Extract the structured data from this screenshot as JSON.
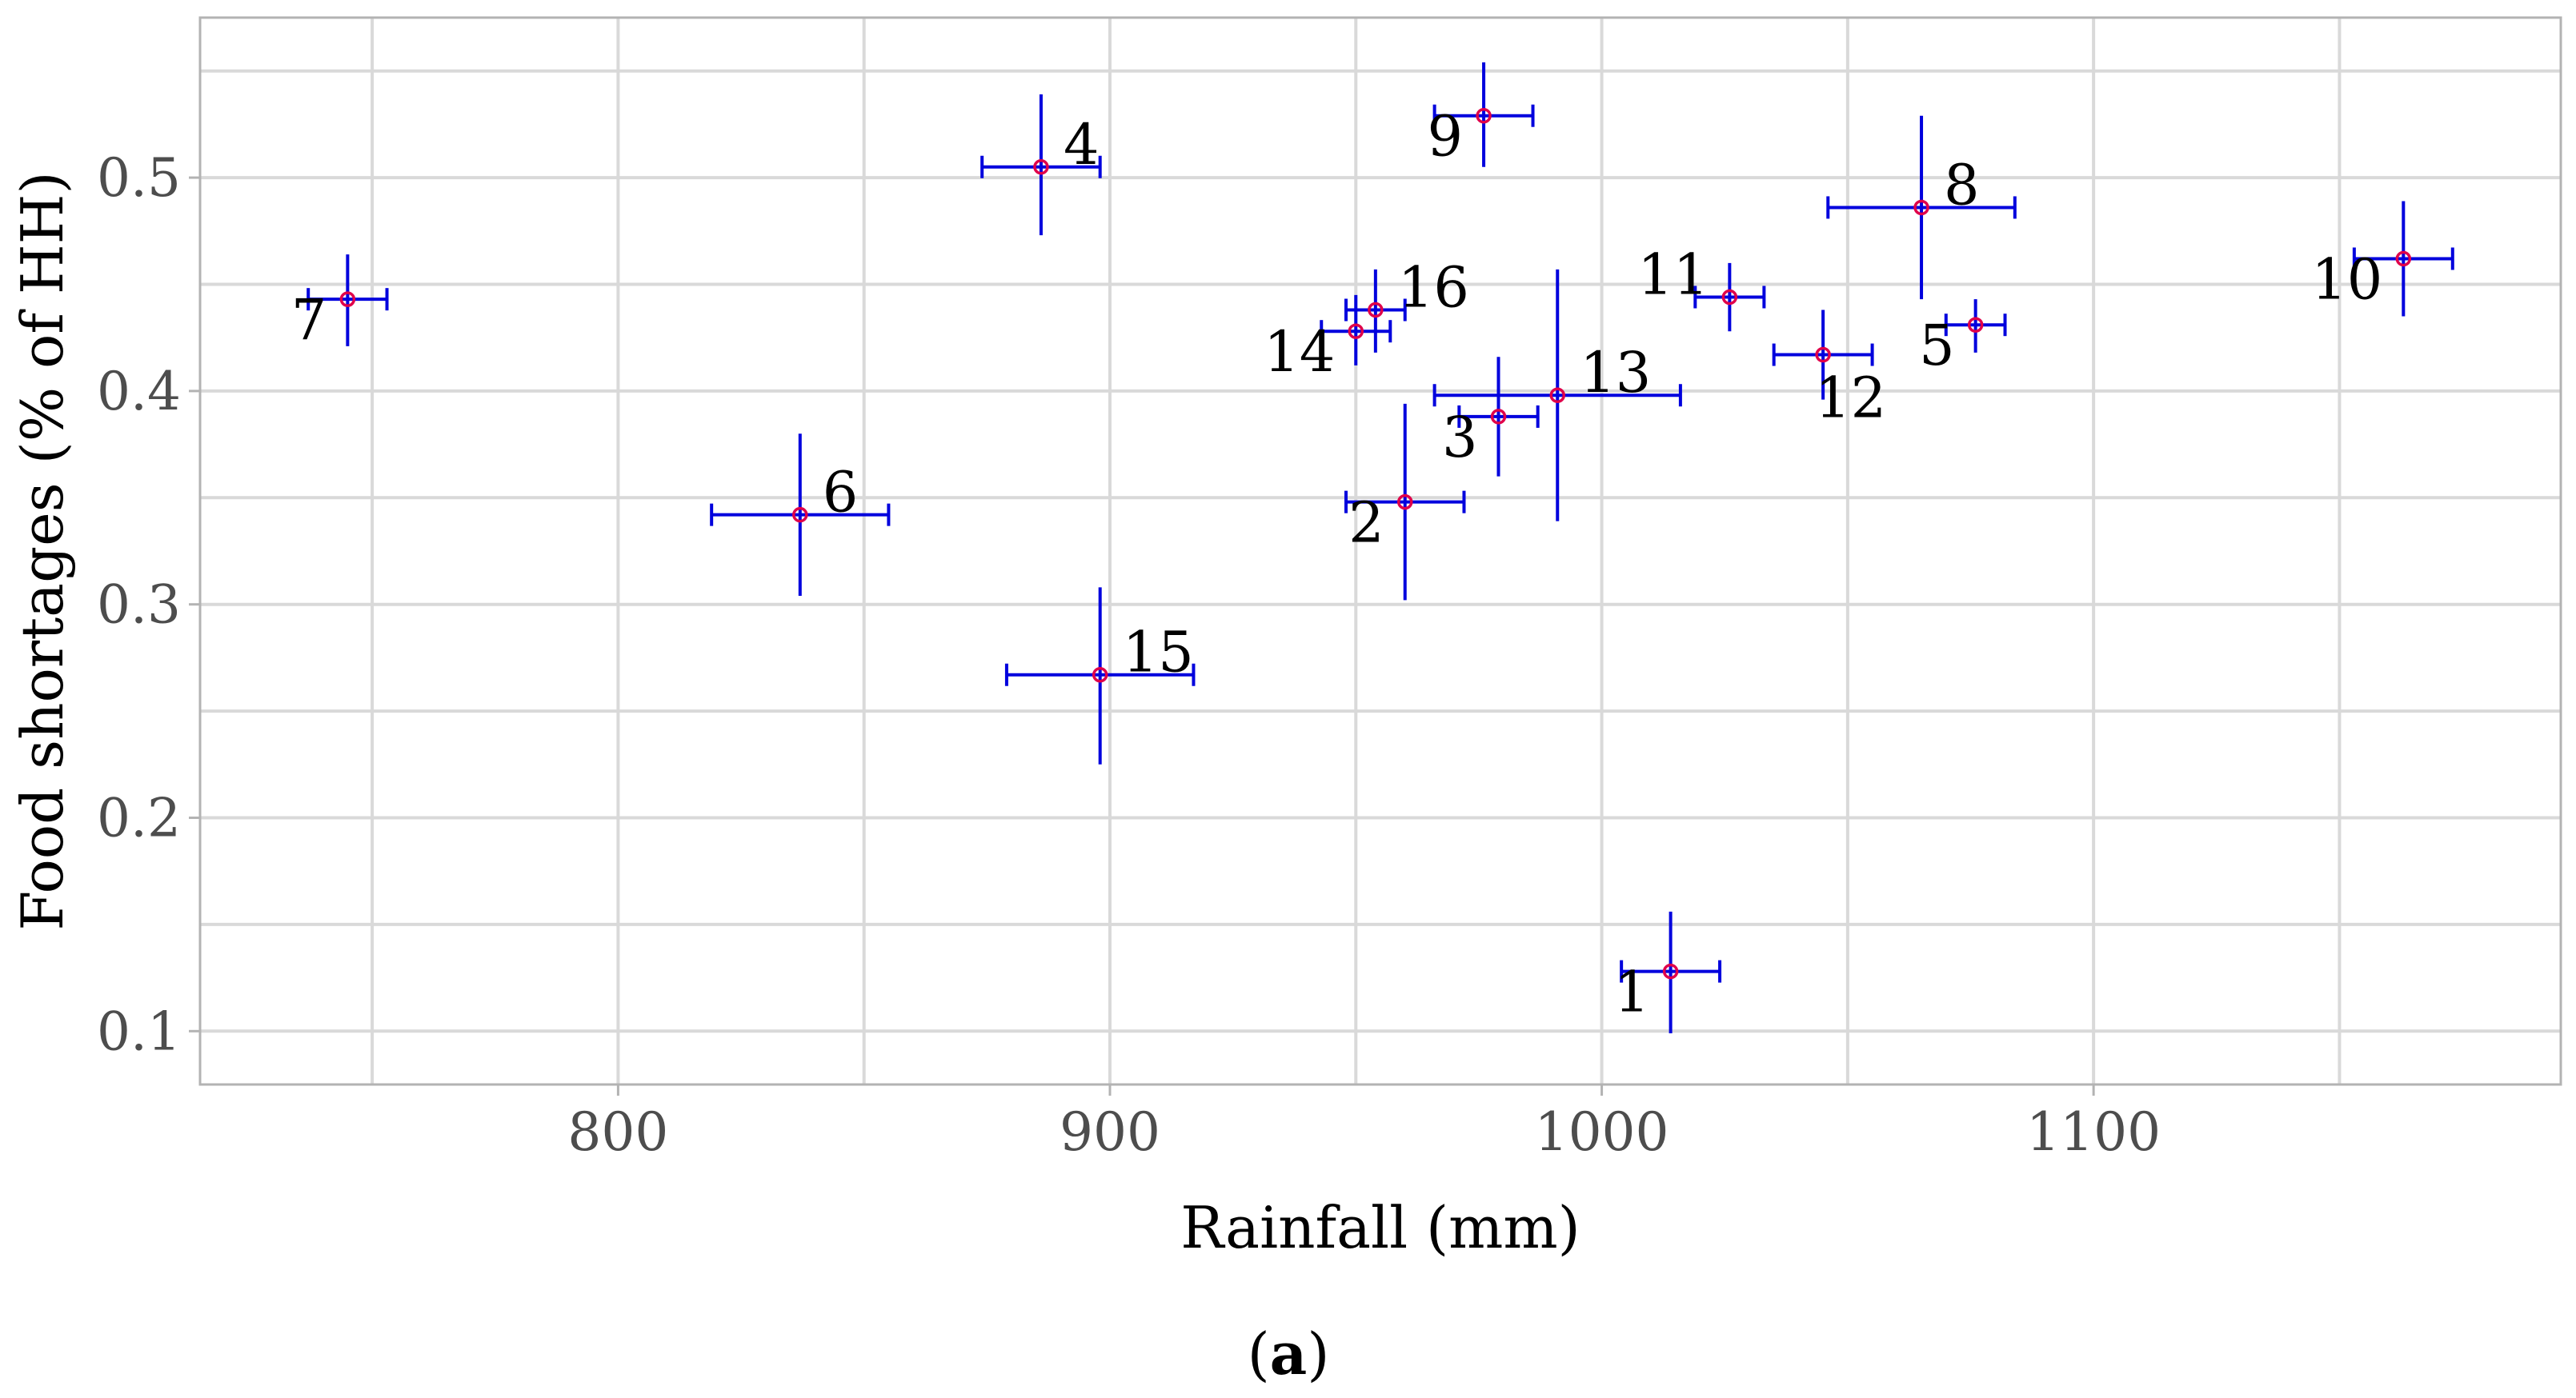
{
  "chart_data": {
    "type": "scatter",
    "title": "",
    "xlabel": "Rainfall (mm)",
    "ylabel": "Food shortages (% of HH)",
    "xlim": [
      715,
      1195
    ],
    "ylim": [
      0.075,
      0.575
    ],
    "x_ticks": [
      800,
      900,
      1000,
      1100
    ],
    "x_tick_labels": [
      "800",
      "900",
      "1000",
      "1100"
    ],
    "x_minor_ticks": [
      750,
      850,
      950,
      1050,
      1150
    ],
    "y_ticks": [
      0.1,
      0.2,
      0.3,
      0.4,
      0.5
    ],
    "y_tick_labels": [
      "0.1",
      "0.2",
      "0.3",
      "0.4",
      "0.5"
    ],
    "y_minor_ticks": [
      0.15,
      0.25,
      0.35,
      0.45,
      0.55
    ],
    "grid": true,
    "error_bars": true,
    "point_color": "#e0004a",
    "errorbar_color": "#0000dd",
    "grid_color": "#d9d9d9",
    "points": [
      {
        "label": "1",
        "x": 1014,
        "y": 0.128,
        "xerr": [
          1004,
          1024
        ],
        "yerr": [
          0.099,
          0.156
        ],
        "label_pos": "bottom-left"
      },
      {
        "label": "2",
        "x": 960,
        "y": 0.348,
        "xerr": [
          948,
          972
        ],
        "yerr": [
          0.302,
          0.394
        ],
        "label_pos": "bottom-left"
      },
      {
        "label": "3",
        "x": 979,
        "y": 0.388,
        "xerr": [
          971,
          987
        ],
        "yerr": [
          0.36,
          0.416
        ],
        "label_pos": "bottom-left"
      },
      {
        "label": "4",
        "x": 886,
        "y": 0.505,
        "xerr": [
          874,
          898
        ],
        "yerr": [
          0.473,
          0.539
        ],
        "label_pos": "top-right"
      },
      {
        "label": "5",
        "x": 1076,
        "y": 0.431,
        "xerr": [
          1070,
          1082
        ],
        "yerr": [
          0.418,
          0.443
        ],
        "label_pos": "bottom-left"
      },
      {
        "label": "6",
        "x": 837,
        "y": 0.342,
        "xerr": [
          819,
          855
        ],
        "yerr": [
          0.304,
          0.38
        ],
        "label_pos": "top-right"
      },
      {
        "label": "7",
        "x": 745,
        "y": 0.443,
        "xerr": [
          737,
          753
        ],
        "yerr": [
          0.421,
          0.464
        ],
        "label_pos": "bottom-left"
      },
      {
        "label": "8",
        "x": 1065,
        "y": 0.486,
        "xerr": [
          1046,
          1084
        ],
        "yerr": [
          0.443,
          0.529
        ],
        "label_pos": "top-right"
      },
      {
        "label": "9",
        "x": 976,
        "y": 0.529,
        "xerr": [
          966,
          986
        ],
        "yerr": [
          0.505,
          0.554
        ],
        "label_pos": "bottom-left"
      },
      {
        "label": "10",
        "x": 1163,
        "y": 0.462,
        "xerr": [
          1153,
          1173
        ],
        "yerr": [
          0.435,
          0.489
        ],
        "label_pos": "bottom-left"
      },
      {
        "label": "11",
        "x": 1026,
        "y": 0.444,
        "xerr": [
          1019,
          1033
        ],
        "yerr": [
          0.428,
          0.46
        ],
        "label_pos": "top-left"
      },
      {
        "label": "12",
        "x": 1045,
        "y": 0.417,
        "xerr": [
          1035,
          1055
        ],
        "yerr": [
          0.396,
          0.438
        ],
        "label_pos": "bottom-right"
      },
      {
        "label": "13",
        "x": 991,
        "y": 0.398,
        "xerr": [
          966,
          1016
        ],
        "yerr": [
          0.339,
          0.457
        ],
        "label_pos": "top-right"
      },
      {
        "label": "14",
        "x": 950,
        "y": 0.428,
        "xerr": [
          943,
          957
        ],
        "yerr": [
          0.412,
          0.445
        ],
        "label_pos": "bottom-left"
      },
      {
        "label": "15",
        "x": 898,
        "y": 0.267,
        "xerr": [
          879,
          917
        ],
        "yerr": [
          0.225,
          0.308
        ],
        "label_pos": "top-right"
      },
      {
        "label": "16",
        "x": 954,
        "y": 0.438,
        "xerr": [
          948,
          960
        ],
        "yerr": [
          0.418,
          0.457
        ],
        "label_pos": "top-right"
      }
    ]
  },
  "caption": {
    "open": "(",
    "letter": "a",
    "close": ")"
  }
}
